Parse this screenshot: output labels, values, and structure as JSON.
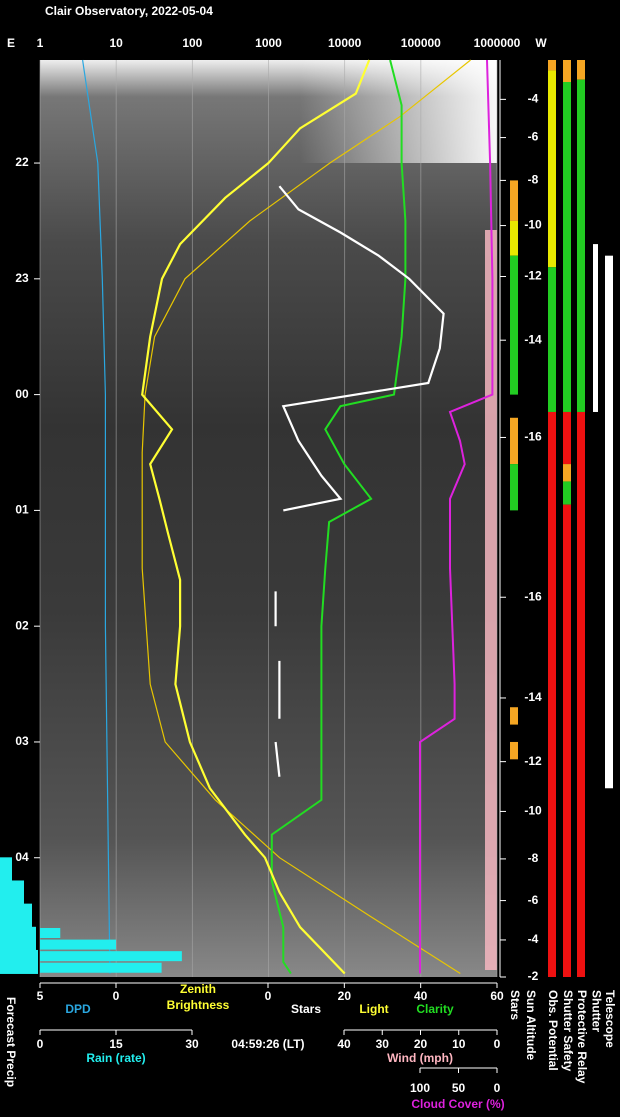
{
  "title": "Clair Observatory, 2022-05-04",
  "east": "E",
  "west": "W",
  "top_axis": {
    "log": true,
    "xlim": [
      1,
      1000000
    ],
    "ticks": [
      1,
      10,
      100,
      1000,
      10000,
      100000,
      1000000
    ],
    "grid": true
  },
  "time_axis": {
    "ylim": [
      21.11,
      29.03
    ],
    "ticks": [
      22,
      23,
      {
        "value": 24,
        "label": "00"
      },
      {
        "value": 25,
        "label": "01"
      },
      {
        "value": 26,
        "label": "02"
      },
      {
        "value": 27,
        "label": "03"
      },
      {
        "value": 28,
        "label": "04"
      }
    ]
  },
  "sun_altitude": {
    "label": "Sun Altitude",
    "ticks": [
      {
        "value": 21.45,
        "label": "-4"
      },
      {
        "value": 21.78,
        "label": "-6"
      },
      {
        "value": 22.15,
        "label": "-8"
      },
      {
        "value": 22.54,
        "label": "-10"
      },
      {
        "value": 22.98,
        "label": "-12"
      },
      {
        "value": 23.53,
        "label": "-14"
      },
      {
        "value": 24.37,
        "label": "-16"
      },
      {
        "value": 25.75,
        "label": "-16"
      },
      {
        "value": 26.62,
        "label": "-14"
      },
      {
        "value": 27.17,
        "label": "-12"
      },
      {
        "value": 27.6,
        "label": "-10"
      },
      {
        "value": 28.01,
        "label": "-8"
      },
      {
        "value": 28.37,
        "label": "-6"
      },
      {
        "value": 28.71,
        "label": "-4"
      },
      {
        "value": 29.03,
        "label": "-2"
      }
    ]
  },
  "dpd": {
    "label": "DPD",
    "color": "#2aa7e0",
    "xlim": [
      5,
      0
    ],
    "ticks": [
      5,
      0
    ],
    "times": [
      21.11,
      22,
      23,
      24,
      26,
      28,
      29
    ],
    "values": [
      2.2,
      1.2,
      0.9,
      0.7,
      0.7,
      0.5,
      0.4
    ]
  },
  "brightness": {
    "label": "Zenith Brightness",
    "color": "#ffff33",
    "times": [
      21.11,
      21.4,
      21.7,
      22.0,
      22.3,
      22.7,
      23.0,
      23.5,
      24.0,
      24.3,
      24.6,
      24.9,
      25.2,
      25.6,
      26.0,
      26.5,
      27.0,
      27.4,
      27.8,
      28.0,
      28.3,
      28.6,
      29.0
    ],
    "values": [
      21000,
      14000,
      2600,
      1000,
      270,
      69,
      40,
      28,
      22,
      54,
      28,
      37,
      48,
      69,
      69,
      60,
      93,
      170,
      490,
      900,
      1400,
      2600,
      10000
    ]
  },
  "light": {
    "label": "Light",
    "color": "#e8c600",
    "times": [
      21.11,
      21.6,
      22.0,
      22.5,
      23.0,
      23.5,
      24.0,
      24.5,
      25.5,
      26.5,
      27.0,
      27.5,
      28.0,
      28.5,
      29.0
    ],
    "values": [
      450000,
      53000,
      6400,
      570,
      80,
      32,
      24,
      22,
      22,
      28,
      44,
      200,
      1400,
      21000,
      330000
    ]
  },
  "stars": {
    "label": "Stars",
    "color": "#ffffff",
    "xlim": [
      0,
      60
    ],
    "ticks": [
      0,
      20,
      40,
      60
    ],
    "times": [
      22.2,
      22.4,
      22.6,
      22.8,
      23.0,
      23.3,
      23.6,
      23.9,
      24.1,
      24.4,
      24.7,
      24.9,
      25.0,
      null,
      25.7,
      26.0,
      null,
      26.3,
      26.8,
      null,
      27.0,
      27.3
    ],
    "values": [
      3,
      8,
      19,
      29,
      37,
      46,
      45,
      42,
      4,
      8,
      14,
      19,
      4,
      null,
      2,
      2,
      null,
      3,
      3,
      null,
      2,
      3
    ]
  },
  "clarity": {
    "label": "Clarity",
    "color": "#22dd22",
    "times": [
      21.11,
      21.5,
      22.0,
      22.5,
      23.0,
      23.5,
      24.0,
      24.1,
      24.3,
      24.6,
      24.9,
      25.1,
      25.5,
      26.0,
      26.5,
      27.0,
      27.5,
      27.8,
      28.2,
      28.6,
      28.9,
      29.0
    ],
    "values": [
      32,
      35,
      35,
      36,
      36,
      35,
      33,
      19,
      15,
      20,
      27,
      16,
      15,
      14,
      14,
      14,
      14,
      1,
      1,
      4,
      4,
      6
    ]
  },
  "cloud": {
    "label": "Cloud Cover (%)",
    "color": "#dd22dd",
    "xlim": [
      100,
      0
    ],
    "ticks": [
      100,
      50,
      0
    ],
    "times": [
      21.11,
      22.0,
      23.0,
      24.0,
      24.15,
      24.4,
      24.6,
      24.9,
      25.5,
      26.5,
      26.8,
      27.0,
      29.0
    ],
    "values": [
      13,
      9,
      6,
      6,
      61,
      48,
      42,
      61,
      61,
      55,
      55,
      100,
      100
    ]
  },
  "rain": {
    "label": "Rain (rate)",
    "color": "#22eeee",
    "xlim": [
      0,
      30
    ],
    "ticks": [
      0,
      15,
      30
    ],
    "times": [
      28.65,
      28.75,
      28.85,
      28.95
    ],
    "values": [
      4,
      15,
      28,
      24
    ]
  },
  "wind": {
    "label": "Wind (mph)",
    "color": "#ffb6c1",
    "xlim": [
      40,
      0
    ],
    "ticks": [
      40,
      30,
      20,
      10,
      0
    ]
  },
  "forecast_precip": {
    "label": "Forecast Precip",
    "color": "#22eeee",
    "times": [
      28.1,
      28.3,
      28.5,
      28.7,
      28.9
    ],
    "values": [
      0.3,
      0.6,
      0.8,
      0.9,
      0.95
    ]
  },
  "timestamp": "04:59:26 (LT)",
  "columns": [
    {
      "label": "Stars",
      "segments": [
        {
          "from": 22.15,
          "to": 22.5,
          "color": "#f5a623"
        },
        {
          "from": 22.5,
          "to": 22.8,
          "color": "#e8e800"
        },
        {
          "from": 22.8,
          "to": 24.0,
          "color": "#22cc22"
        },
        {
          "from": 24.2,
          "to": 24.6,
          "color": "#f5a623"
        },
        {
          "from": 24.6,
          "to": 25.0,
          "color": "#22cc22"
        },
        {
          "from": 26.7,
          "to": 26.85,
          "color": "#f5a623"
        },
        {
          "from": 27.0,
          "to": 27.15,
          "color": "#f5a623"
        }
      ]
    },
    {
      "label": "Obs. Potential",
      "segments": [
        {
          "from": 21.11,
          "to": 21.2,
          "color": "#f5a623"
        },
        {
          "from": 21.2,
          "to": 22.9,
          "color": "#e8e800"
        },
        {
          "from": 22.9,
          "to": 24.15,
          "color": "#22cc22"
        },
        {
          "from": 24.15,
          "to": 29.03,
          "color": "#ee1111"
        }
      ]
    },
    {
      "label": "Shutter Safety",
      "segments": [
        {
          "from": 21.11,
          "to": 21.3,
          "color": "#f5a623"
        },
        {
          "from": 21.3,
          "to": 24.15,
          "color": "#22cc22"
        },
        {
          "from": 24.15,
          "to": 24.6,
          "color": "#ee1111"
        },
        {
          "from": 24.6,
          "to": 24.75,
          "color": "#f5a623"
        },
        {
          "from": 24.75,
          "to": 24.95,
          "color": "#22cc22"
        },
        {
          "from": 24.95,
          "to": 29.03,
          "color": "#ee1111"
        }
      ]
    },
    {
      "label": "Protective Relay",
      "segments": [
        {
          "from": 21.11,
          "to": 21.28,
          "color": "#f5a623"
        },
        {
          "from": 21.28,
          "to": 24.15,
          "color": "#22cc22"
        },
        {
          "from": 24.15,
          "to": 29.03,
          "color": "#ee1111"
        }
      ]
    },
    {
      "label": "Shutter",
      "segments": [
        {
          "from": 22.7,
          "to": 24.15,
          "color": "#ffffff"
        }
      ]
    },
    {
      "label": "Telescope",
      "segments": [
        {
          "from": 22.8,
          "to": 27.4,
          "color": "#ffffff"
        }
      ]
    }
  ]
}
